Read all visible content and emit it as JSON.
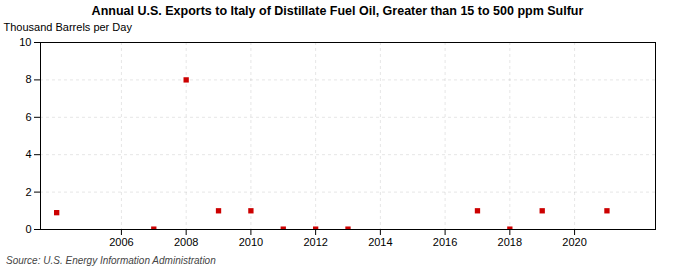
{
  "chart_data": {
    "type": "scatter",
    "title": "Annual U.S. Exports to Italy of Distillate Fuel Oil, Greater than 15 to 500 ppm Sulfur",
    "ylabel": "Thousand Barrels per Day",
    "annotation": "Source: U.S. Energy Information Administration",
    "x": [
      2004,
      2007,
      2008,
      2009,
      2010,
      2011,
      2012,
      2013,
      2017,
      2018,
      2019,
      2021
    ],
    "values": [
      0.9,
      0.02,
      8.0,
      1.0,
      1.0,
      0.02,
      0.02,
      0.02,
      1.0,
      0.02,
      1.0,
      1.0
    ],
    "color": "#cc0000",
    "marker": "square",
    "xlim": [
      2003.5,
      2022.5
    ],
    "ylim": [
      0,
      10
    ],
    "xticks": [
      2006,
      2008,
      2010,
      2012,
      2014,
      2016,
      2018,
      2020
    ],
    "yticks": [
      0,
      2,
      4,
      6,
      8,
      10
    ],
    "grid": true
  }
}
